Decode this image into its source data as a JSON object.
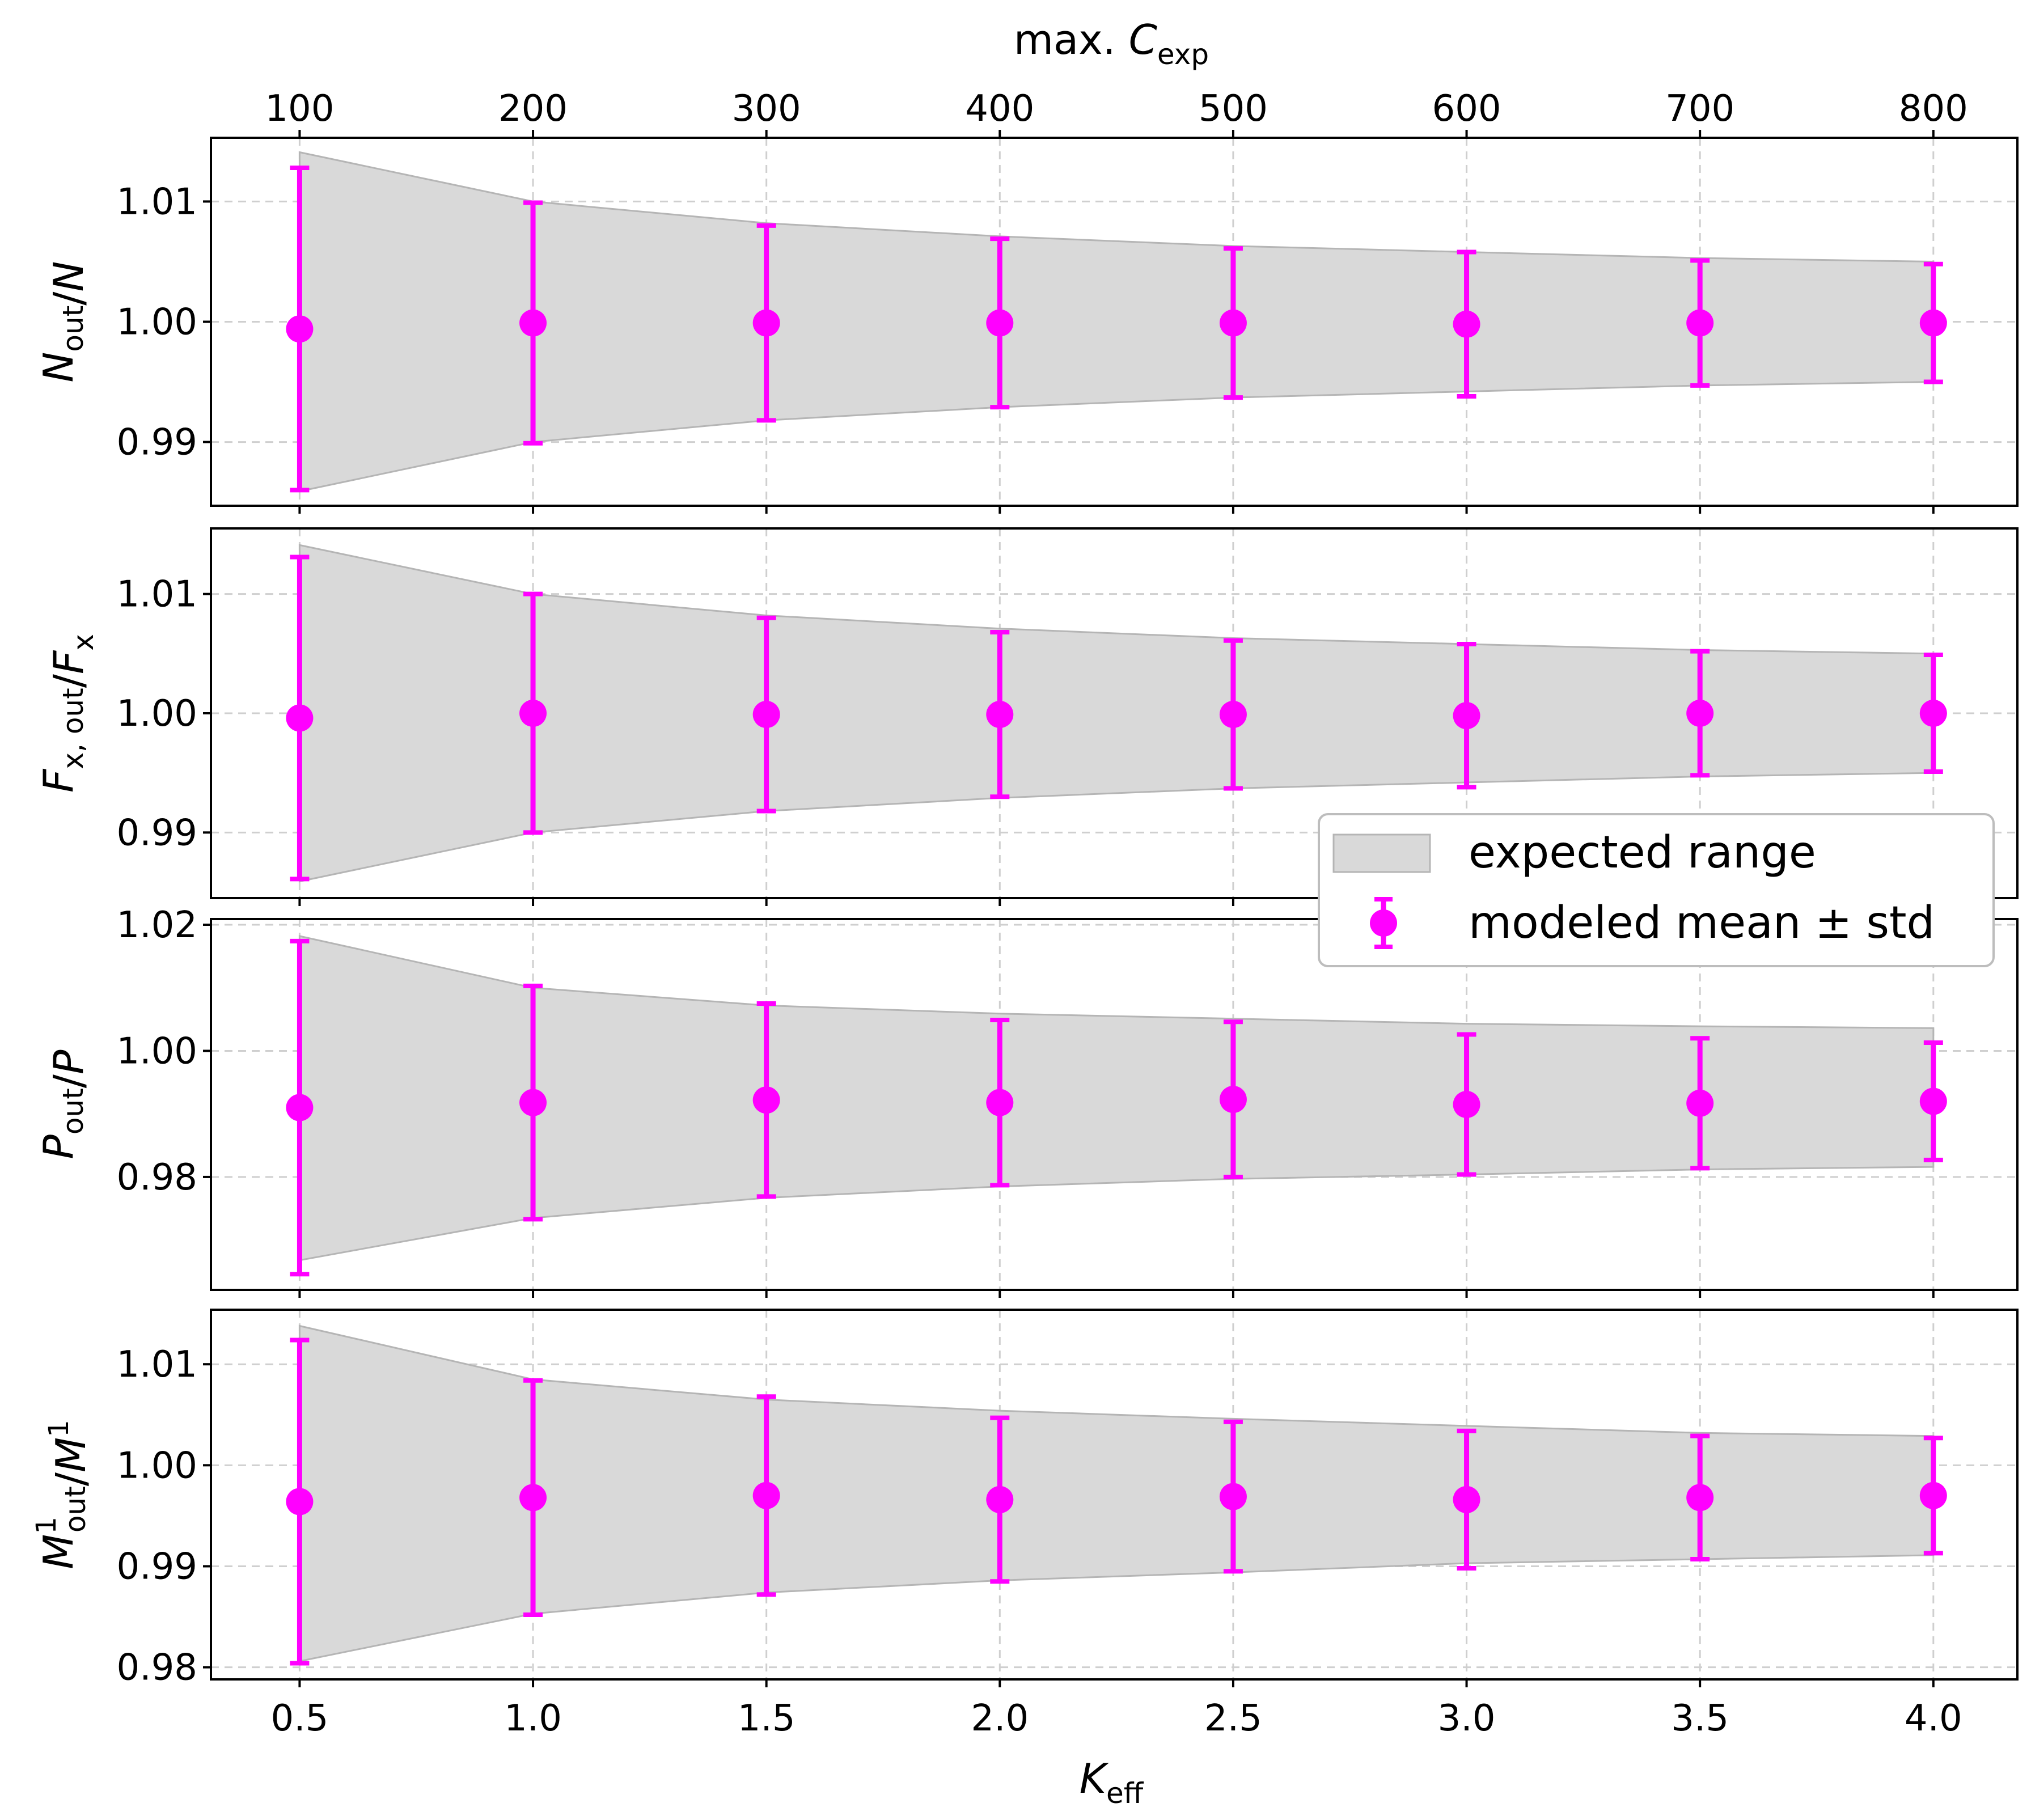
{
  "chart_data": {
    "type": "errorbar",
    "x": {
      "label": "K",
      "label_sub": "eff",
      "ticks": [
        "0.5",
        "1.0",
        "1.5",
        "2.0",
        "2.5",
        "3.0",
        "3.5",
        "4.0"
      ],
      "values": [
        0.5,
        1.0,
        1.5,
        2.0,
        2.5,
        3.0,
        3.5,
        4.0
      ],
      "lim": [
        0.31,
        4.18
      ]
    },
    "x_top": {
      "label_prefix": "max. ",
      "label": "C",
      "label_sub": "exp",
      "ticks": [
        "100",
        "200",
        "300",
        "400",
        "500",
        "600",
        "700",
        "800"
      ]
    },
    "legend": {
      "position": "center-right",
      "band_label": "expected range",
      "points_label": "modeled mean ± std"
    },
    "colors": {
      "points": "#ff00ff",
      "band": "#d9d9d9",
      "band_edge": "#b5b5b5",
      "grid": "#cfcfcf"
    },
    "grid": true,
    "panels": [
      {
        "id": "N",
        "ylabel": {
          "main": "N",
          "sub": "out",
          "sup": "",
          "tail": "/N",
          "tail_sub": "",
          "tail_sup": ""
        },
        "ylim": [
          0.9847,
          1.0153
        ],
        "yticks": [
          "0.99",
          "1.00",
          "1.01"
        ],
        "ytick_values": [
          0.99,
          1.0,
          1.01
        ],
        "band_upper": [
          1.0141,
          1.01,
          1.0082,
          1.0071,
          1.0063,
          1.0058,
          1.0053,
          1.005
        ],
        "band_lower": [
          0.9859,
          0.99,
          0.9918,
          0.9929,
          0.9937,
          0.9942,
          0.9947,
          0.995
        ],
        "mean": [
          0.9994,
          0.9999,
          0.9999,
          0.9999,
          0.9999,
          0.9998,
          0.9999,
          0.9999
        ],
        "std": [
          0.0134,
          0.01,
          0.0081,
          0.007,
          0.0062,
          0.006,
          0.0052,
          0.0049
        ]
      },
      {
        "id": "Fx",
        "ylabel": {
          "main": "F",
          "sub": "x, out",
          "sup": "",
          "tail": "/F",
          "tail_sub": "x",
          "tail_sup": ""
        },
        "ylim": [
          0.9845,
          1.0155
        ],
        "yticks": [
          "0.99",
          "1.00",
          "1.01"
        ],
        "ytick_values": [
          0.99,
          1.0,
          1.01
        ],
        "band_upper": [
          1.0141,
          1.01,
          1.0082,
          1.0071,
          1.0063,
          1.0058,
          1.0053,
          1.005
        ],
        "band_lower": [
          0.9859,
          0.99,
          0.9918,
          0.9929,
          0.9937,
          0.9942,
          0.9947,
          0.995
        ],
        "mean": [
          0.9996,
          1.0,
          0.9999,
          0.9999,
          0.9999,
          0.9998,
          1.0,
          1.0
        ],
        "std": [
          0.0135,
          0.01,
          0.0081,
          0.0069,
          0.0062,
          0.006,
          0.0052,
          0.0049
        ]
      },
      {
        "id": "P",
        "ylabel": {
          "main": "P",
          "sub": "out",
          "sup": "",
          "tail": "/P",
          "tail_sub": "",
          "tail_sup": ""
        },
        "ylim": [
          0.9621,
          1.0209
        ],
        "yticks": [
          "0.98",
          "1.00",
          "1.02"
        ],
        "ytick_values": [
          0.98,
          1.0,
          1.02
        ],
        "band_upper": [
          1.0182,
          1.01,
          1.0072,
          1.0059,
          1.0051,
          1.0043,
          1.0039,
          1.0036
        ],
        "band_lower": [
          0.9668,
          0.9735,
          0.9767,
          0.9785,
          0.9797,
          0.9804,
          0.9812,
          0.9816
        ],
        "mean": [
          0.991,
          0.9918,
          0.9922,
          0.9918,
          0.9923,
          0.9915,
          0.9917,
          0.992
        ],
        "std": [
          0.0264,
          0.0185,
          0.0153,
          0.0131,
          0.0123,
          0.0111,
          0.0103,
          0.0093
        ]
      },
      {
        "id": "M1",
        "ylabel": {
          "main": "M",
          "sub": "out",
          "sup": "1",
          "tail": "/M",
          "tail_sub": "",
          "tail_sup": "1"
        },
        "ylim": [
          0.9788,
          1.0154
        ],
        "yticks": [
          "0.98",
          "0.99",
          "1.00",
          "1.01"
        ],
        "ytick_values": [
          0.98,
          0.99,
          1.0,
          1.01
        ],
        "band_upper": [
          1.0138,
          1.0085,
          1.0065,
          1.0054,
          1.0046,
          1.0039,
          1.0032,
          1.0029
        ],
        "band_lower": [
          0.9806,
          0.9853,
          0.9874,
          0.9886,
          0.9894,
          0.9903,
          0.9907,
          0.9911
        ],
        "mean": [
          0.9964,
          0.9968,
          0.997,
          0.9966,
          0.9969,
          0.9966,
          0.9968,
          0.997
        ],
        "std": [
          0.016,
          0.0116,
          0.0098,
          0.0081,
          0.0074,
          0.0068,
          0.0061,
          0.0057
        ]
      }
    ]
  }
}
